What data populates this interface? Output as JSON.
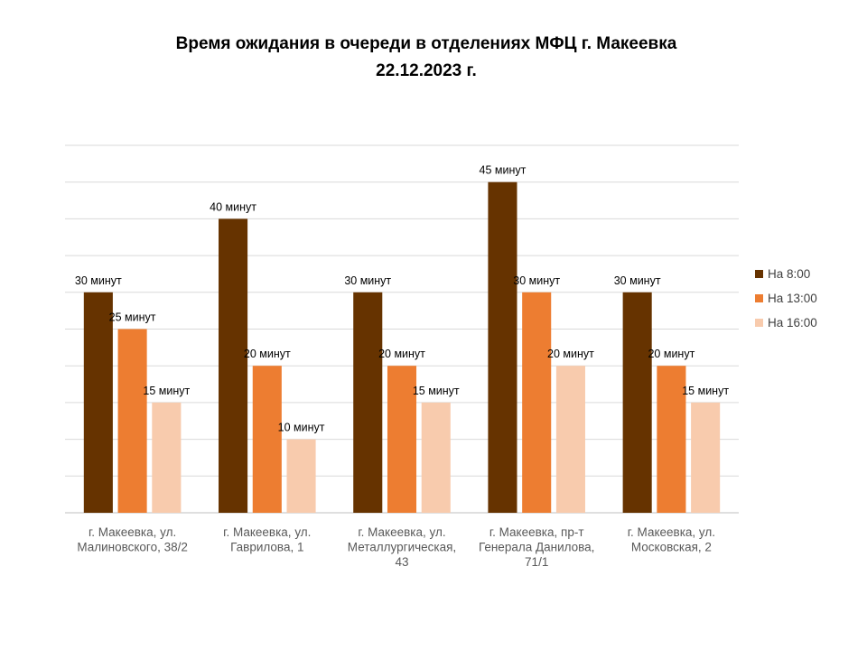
{
  "chart_data": {
    "type": "bar",
    "title": [
      "Время ожидания в очереди в отделениях МФЦ г. Макеевка",
      "22.12.2023 г."
    ],
    "categories": [
      [
        "г. Макеевка, ул.",
        "Малиновского, 38/2"
      ],
      [
        "г. Макеевка, ул.",
        "Гаврилова, 1"
      ],
      [
        "г. Макеевка, ул.",
        "Металлургическая,",
        "43"
      ],
      [
        "г. Макеевка, пр-т",
        "Генерала Данилова,",
        "71/1"
      ],
      [
        "г. Макеевка, ул.",
        "Московская, 2"
      ]
    ],
    "series": [
      {
        "name": "На 8:00",
        "color": "#663300",
        "values": [
          30,
          40,
          30,
          45,
          30
        ]
      },
      {
        "name": "На 13:00",
        "color": "#ED7D31",
        "values": [
          25,
          20,
          20,
          30,
          20
        ]
      },
      {
        "name": "На 16:00",
        "color": "#F8CBAD",
        "values": [
          15,
          10,
          15,
          20,
          15
        ]
      }
    ],
    "value_label_suffix": " минут",
    "ylim": [
      0,
      50
    ],
    "grid": true,
    "legend_position": "right"
  }
}
